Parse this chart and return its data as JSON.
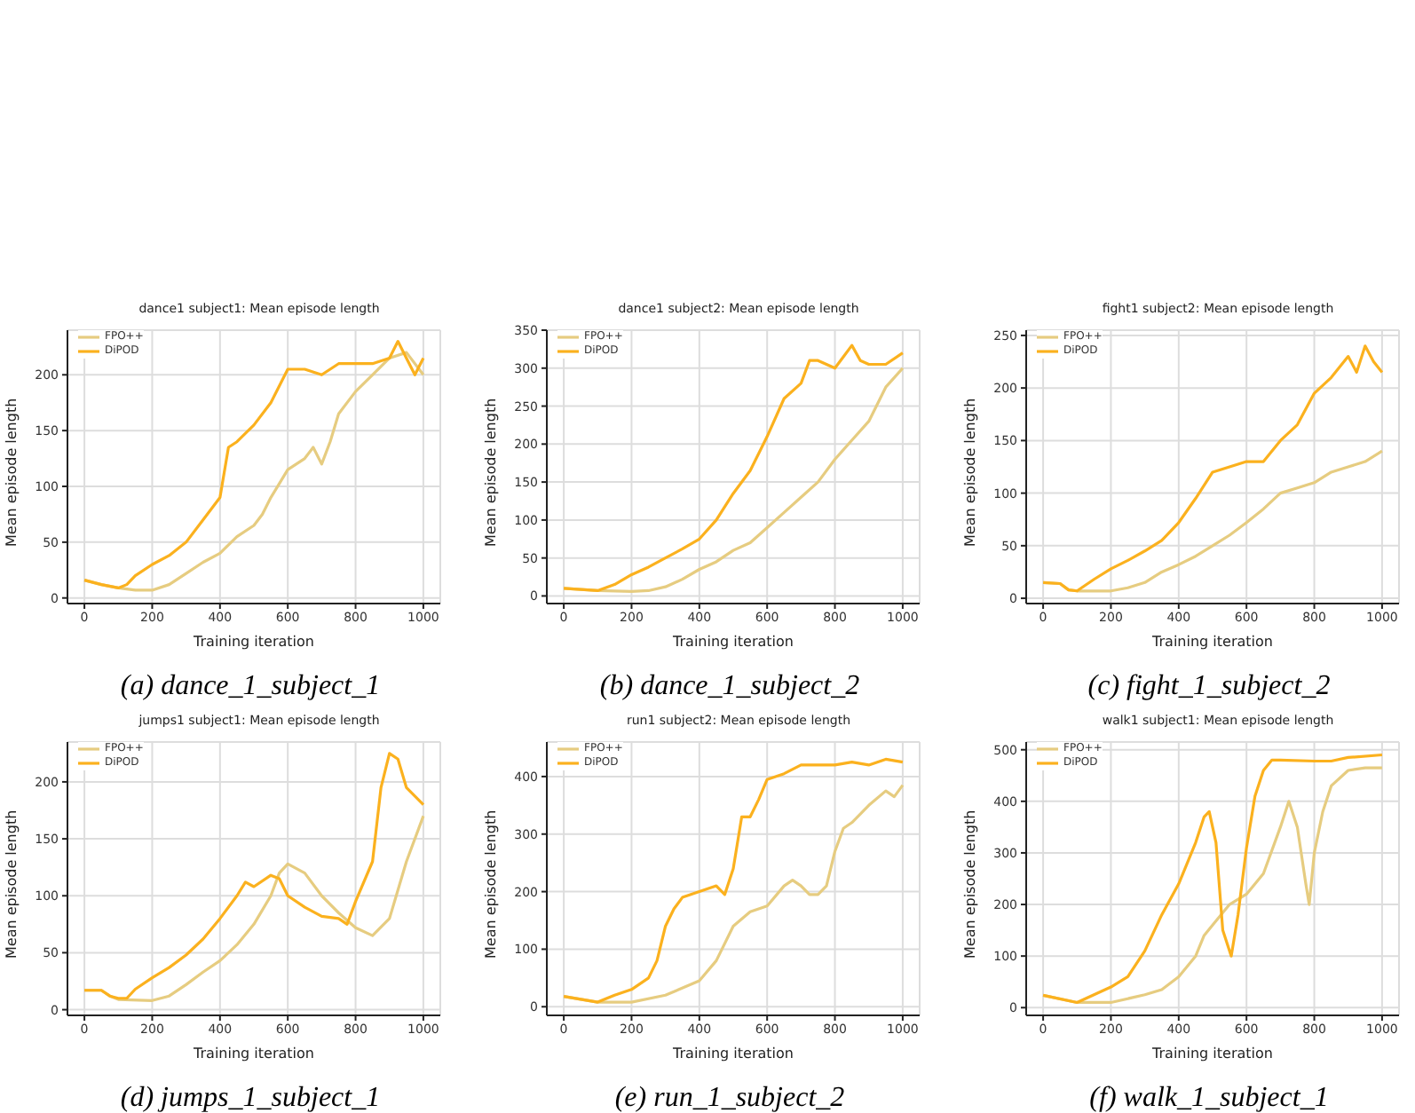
{
  "chart_data": [
    {
      "type": "line",
      "title": "dance1 subject1: Mean episode length",
      "xlabel": "Training iteration",
      "ylabel": "Mean episode length",
      "xlim": [
        -50,
        1050
      ],
      "xticks": [
        0,
        200,
        400,
        600,
        800,
        1000
      ],
      "ylim": [
        -5,
        240
      ],
      "yticks": [
        0,
        50,
        100,
        150,
        200
      ],
      "grid": true,
      "legend": "top left",
      "annotations": [
        "(a) dance_1_subject_1"
      ],
      "series": [
        {
          "name": "FPO++",
          "color": "#e6cc80",
          "x": [
            0,
            50,
            100,
            150,
            200,
            250,
            300,
            350,
            400,
            450,
            500,
            525,
            550,
            600,
            650,
            675,
            700,
            725,
            750,
            800,
            850,
            900,
            950,
            1000
          ],
          "values": [
            16,
            12,
            9,
            7,
            7,
            12,
            22,
            32,
            40,
            55,
            65,
            75,
            90,
            115,
            125,
            135,
            120,
            140,
            165,
            185,
            200,
            215,
            220,
            200
          ]
        },
        {
          "name": "DiPOD",
          "color": "#fbb11e",
          "x": [
            0,
            50,
            100,
            125,
            150,
            200,
            250,
            300,
            350,
            400,
            425,
            450,
            500,
            550,
            600,
            650,
            700,
            750,
            800,
            850,
            900,
            925,
            950,
            975,
            1000
          ],
          "values": [
            16,
            12,
            9,
            12,
            20,
            30,
            38,
            50,
            70,
            90,
            135,
            140,
            155,
            175,
            205,
            205,
            200,
            210,
            210,
            210,
            215,
            230,
            215,
            200,
            215
          ]
        }
      ]
    },
    {
      "type": "line",
      "title": "dance1 subject2: Mean episode length",
      "xlabel": "Training iteration",
      "ylabel": "Mean episode length",
      "xlim": [
        -50,
        1050
      ],
      "xticks": [
        0,
        200,
        400,
        600,
        800,
        1000
      ],
      "ylim": [
        -10,
        350
      ],
      "yticks": [
        0,
        50,
        100,
        150,
        200,
        250,
        300,
        350
      ],
      "grid": true,
      "legend": "top left",
      "annotations": [
        "(b) dance_1_subject_2"
      ],
      "series": [
        {
          "name": "FPO++",
          "color": "#e6cc80",
          "x": [
            0,
            100,
            200,
            250,
            300,
            350,
            400,
            450,
            500,
            550,
            600,
            650,
            700,
            750,
            800,
            850,
            900,
            950,
            1000
          ],
          "values": [
            10,
            7,
            6,
            7,
            12,
            22,
            35,
            45,
            60,
            70,
            90,
            110,
            130,
            150,
            180,
            205,
            230,
            275,
            300
          ]
        },
        {
          "name": "DiPOD",
          "color": "#fbb11e",
          "x": [
            0,
            100,
            150,
            200,
            250,
            300,
            350,
            400,
            450,
            500,
            550,
            600,
            650,
            700,
            725,
            750,
            800,
            825,
            850,
            875,
            900,
            950,
            1000
          ],
          "values": [
            10,
            7,
            15,
            28,
            38,
            50,
            62,
            75,
            100,
            135,
            165,
            210,
            260,
            280,
            310,
            310,
            300,
            315,
            330,
            310,
            305,
            305,
            320
          ]
        }
      ]
    },
    {
      "type": "line",
      "title": "fight1 subject2: Mean episode length",
      "xlabel": "Training iteration",
      "ylabel": "Mean episode length",
      "xlim": [
        -50,
        1050
      ],
      "xticks": [
        0,
        200,
        400,
        600,
        800,
        1000
      ],
      "ylim": [
        -5,
        255
      ],
      "yticks": [
        0,
        50,
        100,
        150,
        200,
        250
      ],
      "grid": true,
      "legend": "top left",
      "annotations": [
        "(c) fight_1_subject_2"
      ],
      "series": [
        {
          "name": "FPO++",
          "color": "#e6cc80",
          "x": [
            0,
            50,
            75,
            100,
            200,
            250,
            300,
            350,
            400,
            450,
            500,
            550,
            600,
            650,
            700,
            750,
            800,
            850,
            900,
            950,
            1000
          ],
          "values": [
            15,
            14,
            8,
            7,
            7,
            10,
            15,
            25,
            32,
            40,
            50,
            60,
            72,
            85,
            100,
            105,
            110,
            120,
            125,
            130,
            140
          ]
        },
        {
          "name": "DiPOD",
          "color": "#fbb11e",
          "x": [
            0,
            50,
            75,
            100,
            150,
            200,
            250,
            300,
            350,
            400,
            450,
            500,
            550,
            600,
            650,
            700,
            750,
            800,
            850,
            900,
            925,
            950,
            975,
            1000
          ],
          "values": [
            15,
            14,
            8,
            7,
            18,
            28,
            36,
            45,
            55,
            72,
            95,
            120,
            125,
            130,
            130,
            150,
            165,
            195,
            210,
            230,
            215,
            240,
            225,
            215
          ]
        }
      ]
    },
    {
      "type": "line",
      "title": "jumps1 subject1: Mean episode length",
      "xlabel": "Training iteration",
      "ylabel": "Mean episode length",
      "xlim": [
        -50,
        1050
      ],
      "xticks": [
        0,
        200,
        400,
        600,
        800,
        1000
      ],
      "ylim": [
        -5,
        235
      ],
      "yticks": [
        0,
        50,
        100,
        150,
        200
      ],
      "grid": true,
      "legend": "top left",
      "annotations": [
        "(d) jumps_1_subject_1"
      ],
      "series": [
        {
          "name": "FPO++",
          "color": "#e6cc80",
          "x": [
            0,
            50,
            75,
            100,
            200,
            250,
            300,
            350,
            400,
            450,
            500,
            550,
            575,
            600,
            650,
            700,
            750,
            800,
            850,
            900,
            950,
            1000
          ],
          "values": [
            17,
            17,
            12,
            9,
            8,
            12,
            22,
            33,
            43,
            57,
            75,
            100,
            120,
            128,
            120,
            100,
            85,
            72,
            65,
            80,
            130,
            170
          ]
        },
        {
          "name": "DiPOD",
          "color": "#fbb11e",
          "x": [
            0,
            50,
            75,
            100,
            125,
            150,
            200,
            250,
            300,
            350,
            400,
            450,
            475,
            500,
            550,
            575,
            600,
            650,
            700,
            750,
            775,
            800,
            850,
            875,
            900,
            925,
            950,
            1000
          ],
          "values": [
            17,
            17,
            12,
            10,
            10,
            18,
            28,
            37,
            48,
            62,
            80,
            100,
            112,
            108,
            118,
            115,
            100,
            90,
            82,
            80,
            75,
            95,
            130,
            195,
            225,
            220,
            195,
            180
          ]
        }
      ]
    },
    {
      "type": "line",
      "title": "run1 subject2: Mean episode length",
      "xlabel": "Training iteration",
      "ylabel": "Mean episode length",
      "xlim": [
        -50,
        1050
      ],
      "xticks": [
        0,
        200,
        400,
        600,
        800,
        1000
      ],
      "ylim": [
        -15,
        460
      ],
      "yticks": [
        0,
        100,
        200,
        300,
        400
      ],
      "grid": true,
      "legend": "top left",
      "annotations": [
        "(e) run_1_subject_2"
      ],
      "series": [
        {
          "name": "FPO++",
          "color": "#e6cc80",
          "x": [
            0,
            100,
            200,
            300,
            400,
            450,
            500,
            550,
            600,
            650,
            675,
            700,
            725,
            750,
            775,
            800,
            825,
            850,
            900,
            950,
            975,
            1000
          ],
          "values": [
            18,
            8,
            8,
            20,
            45,
            80,
            140,
            165,
            175,
            210,
            220,
            210,
            195,
            195,
            210,
            270,
            310,
            320,
            350,
            375,
            365,
            385
          ]
        },
        {
          "name": "DiPOD",
          "color": "#fbb11e",
          "x": [
            0,
            100,
            150,
            200,
            250,
            275,
            300,
            325,
            350,
            400,
            450,
            475,
            500,
            525,
            550,
            575,
            600,
            650,
            700,
            750,
            800,
            850,
            900,
            950,
            1000
          ],
          "values": [
            18,
            8,
            20,
            30,
            50,
            80,
            140,
            170,
            190,
            200,
            210,
            195,
            240,
            330,
            330,
            360,
            395,
            405,
            420,
            420,
            420,
            425,
            420,
            430,
            425
          ]
        }
      ]
    },
    {
      "type": "line",
      "title": "walk1 subject1: Mean episode length",
      "xlabel": "Training iteration",
      "ylabel": "Mean episode length",
      "xlim": [
        -50,
        1050
      ],
      "xticks": [
        0,
        200,
        400,
        600,
        800,
        1000
      ],
      "ylim": [
        -15,
        515
      ],
      "yticks": [
        0,
        100,
        200,
        300,
        400,
        500
      ],
      "grid": true,
      "legend": "top left",
      "annotations": [
        "(f) walk_1_subject_1"
      ],
      "series": [
        {
          "name": "FPO++",
          "color": "#e6cc80",
          "x": [
            0,
            100,
            200,
            300,
            350,
            400,
            450,
            475,
            500,
            550,
            600,
            650,
            700,
            725,
            750,
            775,
            785,
            800,
            825,
            850,
            900,
            950,
            1000
          ],
          "values": [
            24,
            10,
            10,
            25,
            35,
            60,
            100,
            140,
            160,
            200,
            220,
            260,
            350,
            400,
            350,
            240,
            200,
            300,
            380,
            430,
            460,
            465,
            465
          ]
        },
        {
          "name": "DiPOD",
          "color": "#fbb11e",
          "x": [
            0,
            100,
            150,
            200,
            250,
            300,
            350,
            400,
            450,
            475,
            490,
            510,
            530,
            555,
            575,
            600,
            625,
            650,
            675,
            700,
            800,
            850,
            900,
            1000
          ],
          "values": [
            24,
            10,
            25,
            40,
            60,
            110,
            180,
            240,
            320,
            370,
            380,
            320,
            150,
            100,
            180,
            310,
            410,
            460,
            480,
            480,
            478,
            478,
            485,
            490
          ]
        }
      ]
    }
  ]
}
